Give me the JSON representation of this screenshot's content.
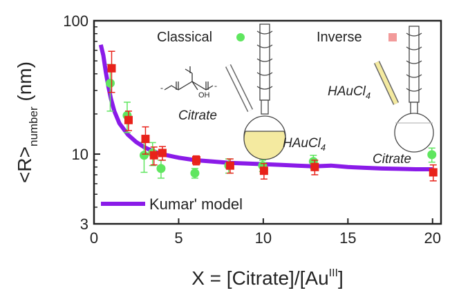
{
  "chart_data": {
    "type": "scatter",
    "xlabel": {
      "main": "X = [Citrate]/[Au",
      "sup": "III",
      "close": "]"
    },
    "ylabel": {
      "main": "<R>",
      "sub": "number",
      "unit": " (nm)"
    },
    "xlim": [
      0,
      20.5
    ],
    "ylim": [
      3,
      100
    ],
    "yscale": "log",
    "x_ticks": [
      0,
      5,
      10,
      15,
      20
    ],
    "x_tick_labels": [
      "0",
      "5",
      "10",
      "15",
      "20"
    ],
    "y_ticks": [
      3,
      10,
      100
    ],
    "y_tick_labels": [
      "3",
      "10",
      "100"
    ],
    "grid": false,
    "series": [
      {
        "name": "Classical",
        "marker": "circle",
        "color": "#5fe65f",
        "x": [
          1,
          2,
          3,
          3.5,
          4,
          6,
          8,
          10,
          13,
          20
        ],
        "y": [
          34,
          19.5,
          9.8,
          10.2,
          7.8,
          7.2,
          8.2,
          8.2,
          8.8,
          9.9
        ],
        "err": [
          13,
          5,
          2.5,
          2,
          1.2,
          0.6,
          1,
          0.8,
          1,
          1.2
        ]
      },
      {
        "name": "Inverse",
        "marker": "square",
        "color": "#e8221a",
        "x": [
          1,
          2,
          3,
          3.5,
          4,
          6,
          8,
          10,
          13,
          20
        ],
        "y": [
          44,
          18,
          13,
          9.8,
          10.2,
          9,
          8.2,
          7.5,
          8,
          7.3
        ],
        "err": [
          15,
          3,
          3,
          1.5,
          1.2,
          0.7,
          1,
          1,
          1,
          1
        ]
      },
      {
        "name": "Kumar' model",
        "type": "line",
        "color": "#8a1be8",
        "x": [
          0.4,
          0.55,
          0.7,
          0.85,
          1,
          1.2,
          1.5,
          2,
          2.5,
          3,
          3.5,
          4,
          5,
          6,
          7,
          8,
          9,
          10,
          11,
          12,
          13,
          14,
          15,
          16,
          17,
          18,
          19,
          20
        ],
        "y": [
          66,
          55,
          41,
          32,
          26,
          21,
          17,
          14,
          12.3,
          11.2,
          10.5,
          10,
          9.4,
          9,
          8.8,
          8.6,
          8.5,
          8.4,
          8.3,
          8.2,
          8.1,
          8.2,
          8.0,
          7.9,
          7.8,
          7.75,
          7.7,
          7.7
        ]
      }
    ],
    "annotations": {
      "classical_label": "Classical",
      "inverse_label": "Inverse",
      "citrate_1": "Citrate",
      "citrate_2": "Citrate",
      "haucl4_1": "HAuCl",
      "haucl4_2": "HAuCl",
      "haucl4_sub": "4",
      "molecule_oh": "OH",
      "molecule_minus": "-"
    },
    "legend": {
      "entry": "Kumar' model",
      "placement": "bottom-left"
    },
    "colors": {
      "flask_fill": "#f4eaa0",
      "axis": "#222222"
    }
  }
}
